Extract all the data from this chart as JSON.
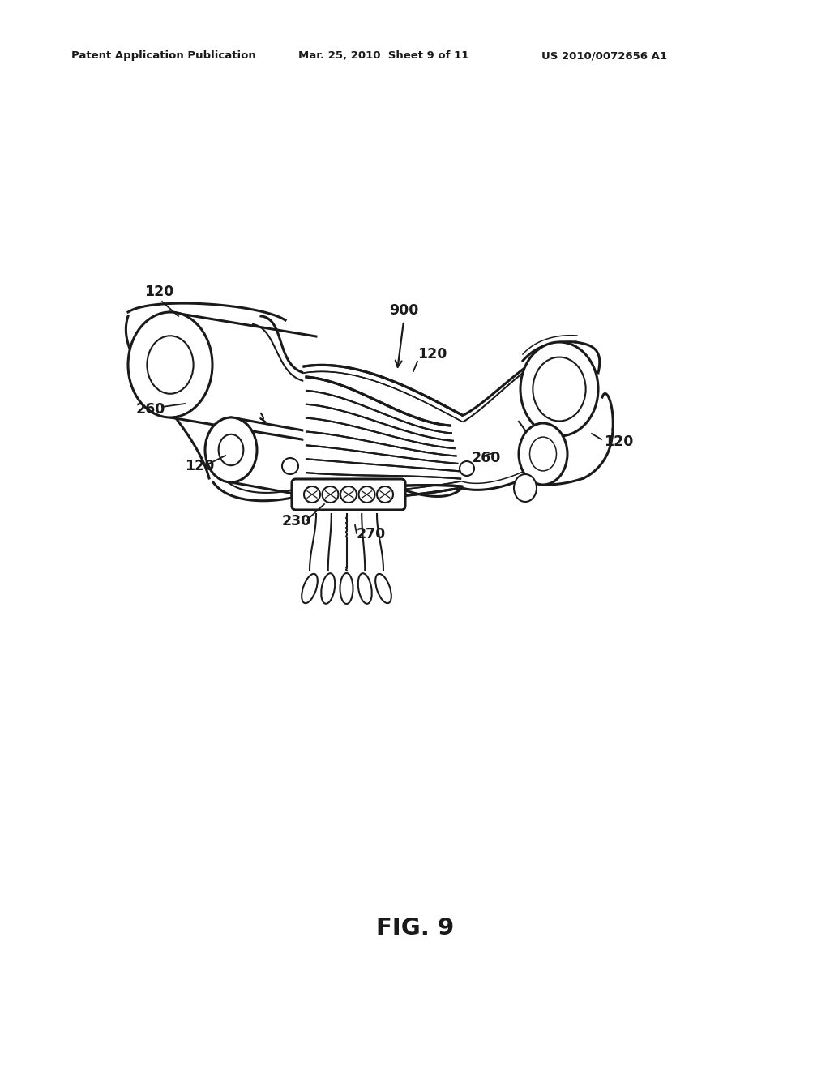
{
  "background_color": "#ffffff",
  "line_color": "#1a1a1a",
  "header_left": "Patent Application Publication",
  "header_center": "Mar. 25, 2010  Sheet 9 of 11",
  "header_right": "US 2010/0072656 A1",
  "fig_label": "FIG. 9",
  "n_wires": 9
}
